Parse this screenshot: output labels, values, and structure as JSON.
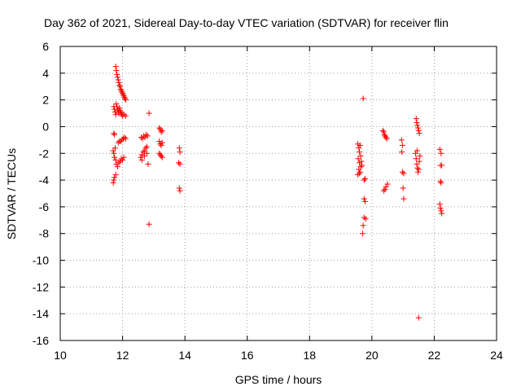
{
  "chart_data": {
    "type": "scatter",
    "title": "Day 362 of 2021, Sidereal Day-to-day VTEC variation (SDTVAR) for receiver flin",
    "xlabel": "GPS time / hours",
    "ylabel": "SDTVAR / TECUs",
    "xlim": [
      10,
      24
    ],
    "ylim": [
      -16,
      6
    ],
    "xticks": [
      10,
      12,
      14,
      16,
      18,
      20,
      22,
      24
    ],
    "yticks": [
      6,
      4,
      2,
      0,
      -2,
      -4,
      -6,
      -8,
      -10,
      -12,
      -14,
      -16
    ],
    "grid": true,
    "marker": "plus",
    "color": "#ff0000",
    "series": [
      {
        "name": "SDTVAR",
        "points": [
          [
            11.78,
            4.5
          ],
          [
            11.8,
            4.2
          ],
          [
            11.82,
            3.9
          ],
          [
            11.84,
            3.7
          ],
          [
            11.86,
            3.5
          ],
          [
            11.88,
            3.3
          ],
          [
            11.9,
            3.1
          ],
          [
            11.92,
            3.0
          ],
          [
            11.94,
            2.8
          ],
          [
            11.96,
            2.7
          ],
          [
            11.98,
            2.6
          ],
          [
            12.0,
            2.5
          ],
          [
            12.02,
            2.4
          ],
          [
            12.04,
            2.3
          ],
          [
            12.06,
            2.2
          ],
          [
            12.08,
            2.1
          ],
          [
            12.1,
            2.0
          ],
          [
            11.72,
            1.5
          ],
          [
            11.74,
            1.3
          ],
          [
            11.76,
            1.1
          ],
          [
            11.78,
            0.9
          ],
          [
            11.8,
            1.7
          ],
          [
            11.82,
            1.5
          ],
          [
            11.84,
            1.3
          ],
          [
            11.86,
            1.2
          ],
          [
            11.88,
            1.0
          ],
          [
            11.9,
            1.4
          ],
          [
            11.92,
            1.2
          ],
          [
            11.94,
            1.1
          ],
          [
            11.96,
            1.0
          ],
          [
            11.98,
            0.9
          ],
          [
            12.0,
            0.8
          ],
          [
            12.05,
            0.9
          ],
          [
            12.1,
            0.8
          ],
          [
            11.72,
            -0.5
          ],
          [
            11.74,
            -0.6
          ],
          [
            11.86,
            -1.2
          ],
          [
            11.9,
            -1.1
          ],
          [
            11.94,
            -1.1
          ],
          [
            11.98,
            -1.0
          ],
          [
            12.02,
            -0.9
          ],
          [
            12.06,
            -0.8
          ],
          [
            12.1,
            -0.9
          ],
          [
            11.7,
            -1.8
          ],
          [
            11.72,
            -2.0
          ],
          [
            11.74,
            -2.3
          ],
          [
            11.76,
            -1.6
          ],
          [
            11.78,
            -2.5
          ],
          [
            11.8,
            -2.8
          ],
          [
            11.84,
            -3.0
          ],
          [
            11.88,
            -2.7
          ],
          [
            11.92,
            -2.6
          ],
          [
            11.96,
            -2.4
          ],
          [
            12.0,
            -2.5
          ],
          [
            12.04,
            -2.3
          ],
          [
            11.7,
            -4.2
          ],
          [
            11.72,
            -4.0
          ],
          [
            11.74,
            -3.8
          ],
          [
            11.78,
            -3.6
          ],
          [
            12.6,
            -0.8
          ],
          [
            12.64,
            -0.9
          ],
          [
            12.68,
            -0.7
          ],
          [
            12.72,
            -0.8
          ],
          [
            12.76,
            -0.6
          ],
          [
            12.8,
            -0.7
          ],
          [
            12.58,
            -2.3
          ],
          [
            12.62,
            -2.1
          ],
          [
            12.66,
            -1.9
          ],
          [
            12.7,
            -1.8
          ],
          [
            12.74,
            -1.6
          ],
          [
            12.78,
            -1.5
          ],
          [
            12.62,
            -2.5
          ],
          [
            12.7,
            -2.2
          ],
          [
            12.78,
            -2.0
          ],
          [
            12.85,
            1.0
          ],
          [
            12.82,
            -2.8
          ],
          [
            12.85,
            -7.3
          ],
          [
            13.18,
            -0.1
          ],
          [
            13.21,
            -0.2
          ],
          [
            13.24,
            -0.4
          ],
          [
            13.27,
            -0.3
          ],
          [
            13.18,
            -1.1
          ],
          [
            13.21,
            -1.3
          ],
          [
            13.24,
            -1.4
          ],
          [
            13.27,
            -1.2
          ],
          [
            13.18,
            -2.0
          ],
          [
            13.21,
            -2.1
          ],
          [
            13.24,
            -2.2
          ],
          [
            13.27,
            -2.3
          ],
          [
            13.82,
            -1.6
          ],
          [
            13.84,
            -1.9
          ],
          [
            13.8,
            -2.7
          ],
          [
            13.84,
            -2.8
          ],
          [
            13.82,
            -4.6
          ],
          [
            13.84,
            -4.8
          ],
          [
            19.55,
            -1.3
          ],
          [
            19.58,
            -1.6
          ],
          [
            19.6,
            -1.9
          ],
          [
            19.62,
            -1.4
          ],
          [
            19.64,
            -2.2
          ],
          [
            19.66,
            -2.6
          ],
          [
            19.56,
            -2.4
          ],
          [
            19.6,
            -2.7
          ],
          [
            19.64,
            -3.0
          ],
          [
            19.58,
            -3.2
          ],
          [
            19.62,
            -3.4
          ],
          [
            19.55,
            -3.6
          ],
          [
            19.6,
            -3.5
          ],
          [
            19.68,
            -2.9
          ],
          [
            19.72,
            2.1
          ],
          [
            19.75,
            -4.0
          ],
          [
            19.78,
            -3.9
          ],
          [
            19.75,
            -5.4
          ],
          [
            19.78,
            -5.6
          ],
          [
            19.75,
            -6.8
          ],
          [
            19.8,
            -6.9
          ],
          [
            19.72,
            -7.4
          ],
          [
            19.7,
            -8.0
          ],
          [
            20.35,
            -0.3
          ],
          [
            20.38,
            -0.4
          ],
          [
            20.4,
            -0.6
          ],
          [
            20.42,
            -0.7
          ],
          [
            20.45,
            -0.8
          ],
          [
            20.48,
            -0.9
          ],
          [
            20.38,
            -4.8
          ],
          [
            20.42,
            -4.7
          ],
          [
            20.45,
            -4.5
          ],
          [
            20.5,
            -4.3
          ],
          [
            20.95,
            -1.0
          ],
          [
            20.98,
            -1.4
          ],
          [
            20.96,
            -1.9
          ],
          [
            20.98,
            -3.4
          ],
          [
            21.02,
            -3.5
          ],
          [
            21.0,
            -4.6
          ],
          [
            21.02,
            -5.4
          ],
          [
            21.42,
            0.6
          ],
          [
            21.44,
            0.3
          ],
          [
            21.46,
            0.1
          ],
          [
            21.48,
            -0.1
          ],
          [
            21.5,
            -0.3
          ],
          [
            21.52,
            -0.5
          ],
          [
            21.4,
            -2.0
          ],
          [
            21.42,
            -2.4
          ],
          [
            21.44,
            -2.8
          ],
          [
            21.46,
            -3.1
          ],
          [
            21.48,
            -3.4
          ],
          [
            21.5,
            -3.2
          ],
          [
            21.52,
            -2.6
          ],
          [
            21.54,
            -2.2
          ],
          [
            21.45,
            -1.8
          ],
          [
            21.5,
            -14.3
          ],
          [
            22.18,
            -1.7
          ],
          [
            22.22,
            -2.0
          ],
          [
            22.2,
            -2.9
          ],
          [
            22.24,
            -2.9
          ],
          [
            22.2,
            -4.1
          ],
          [
            22.22,
            -4.2
          ],
          [
            22.18,
            -5.8
          ],
          [
            22.2,
            -6.1
          ],
          [
            22.22,
            -6.3
          ],
          [
            22.24,
            -6.5
          ]
        ]
      }
    ]
  }
}
